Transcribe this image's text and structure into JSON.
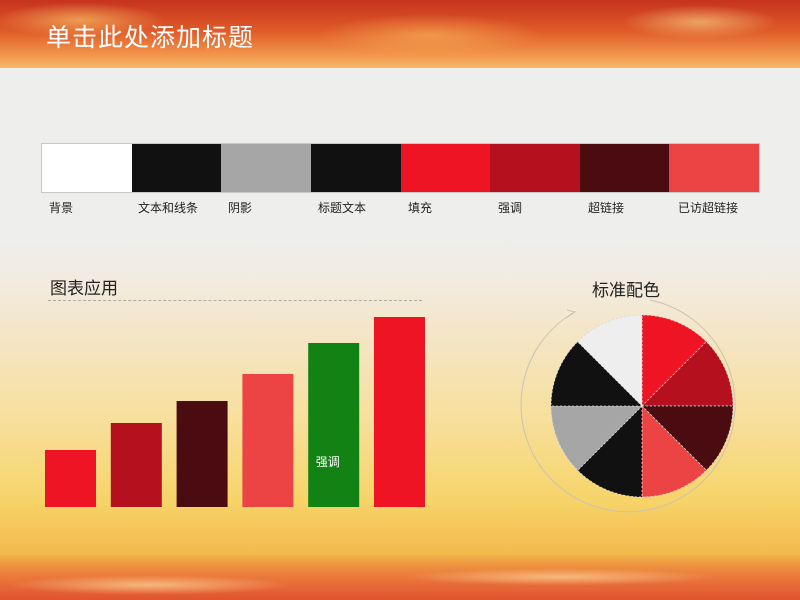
{
  "slide": {
    "title": "单击此处添加标题"
  },
  "palette": [
    {
      "label": "背景",
      "color": "#ffffff"
    },
    {
      "label": "文本和线条",
      "color": "#111111"
    },
    {
      "label": "阴影",
      "color": "#a6a6a6"
    },
    {
      "label": "标题文本",
      "color": "#111111"
    },
    {
      "label": "填充",
      "color": "#ee1424"
    },
    {
      "label": "强调",
      "color": "#b4101e"
    },
    {
      "label": "超链接",
      "color": "#4a0c10"
    },
    {
      "label": "已访超链接",
      "color": "#ec4444"
    }
  ],
  "chart_section": {
    "title": "图表应用"
  },
  "pie_section": {
    "title": "标准配色"
  },
  "chart_data": [
    {
      "type": "bar",
      "categories": [
        "",
        "",
        "",
        "",
        "",
        ""
      ],
      "values": [
        57,
        84,
        106,
        133,
        164,
        190
      ],
      "colors": [
        "#ee1424",
        "#b4101e",
        "#4a0c10",
        "#ec4444",
        "#128214",
        "#ee1424"
      ],
      "data_labels": [
        "",
        "",
        "",
        "",
        "强调",
        ""
      ],
      "ylim": [
        0,
        190
      ],
      "grid": false
    },
    {
      "type": "pie",
      "values": [
        1,
        1,
        1,
        1,
        1,
        1,
        1,
        1
      ],
      "colors": [
        "#ee1424",
        "#b4101e",
        "#4a0c10",
        "#ec4444",
        "#111111",
        "#a6a6a6",
        "#111111",
        "#eeeeee"
      ]
    }
  ]
}
